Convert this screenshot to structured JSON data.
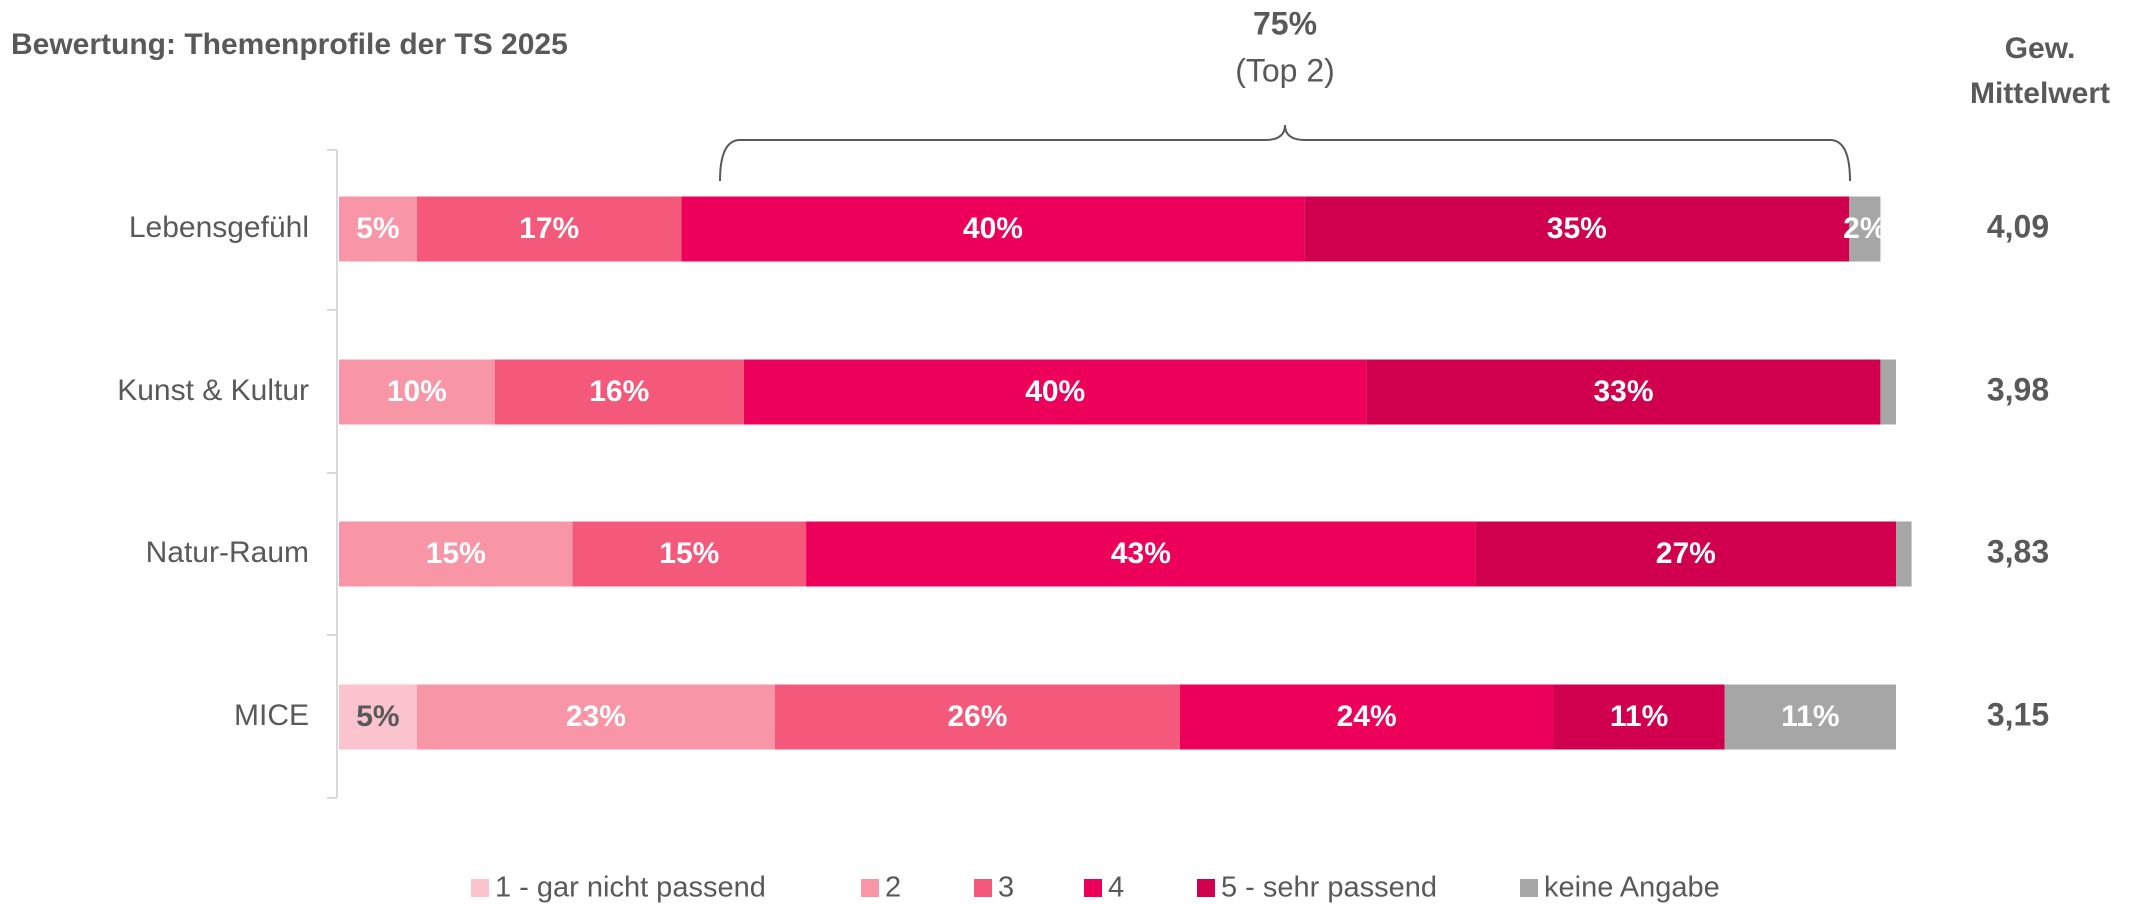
{
  "chart_data": {
    "type": "stacked_bar_horizontal",
    "title": "Bewertung: Themenprofile der TS 2025",
    "categories": [
      "Lebensgefühl",
      "Kunst & Kultur",
      "Natur-Raum",
      "MICE"
    ],
    "xlim": [
      0,
      100
    ],
    "series": [
      {
        "name": "1 - gar nicht passend",
        "color": "#fbc3cd",
        "label_color": "#595959",
        "values": [
          0,
          0,
          0,
          5
        ],
        "value_labels": [
          null,
          null,
          null,
          "5%"
        ]
      },
      {
        "name": "2",
        "color": "#f895a6",
        "label_color": "#ffffff",
        "values": [
          5,
          10,
          15,
          23
        ],
        "value_labels": [
          "5%",
          "10%",
          "15%",
          "23%"
        ]
      },
      {
        "name": "3",
        "color": "#f4587a",
        "label_color": "#ffffff",
        "values": [
          17,
          16,
          15,
          26
        ],
        "value_labels": [
          "17%",
          "16%",
          "15%",
          "26%"
        ]
      },
      {
        "name": "4",
        "color": "#ec005a",
        "label_color": "#ffffff",
        "values": [
          40,
          40,
          43,
          24
        ],
        "value_labels": [
          "40%",
          "40%",
          "43%",
          "24%"
        ]
      },
      {
        "name": "5 - sehr passend",
        "color": "#d0004f",
        "label_color": "#ffffff",
        "values": [
          35,
          33,
          27,
          11
        ],
        "value_labels": [
          "35%",
          "33%",
          "27%",
          "11%"
        ]
      },
      {
        "name": "keine Angabe",
        "color": "#a6a6a6",
        "label_color": "#ffffff",
        "values": [
          2,
          1,
          1,
          11
        ],
        "value_labels": [
          "2%",
          null,
          null,
          "11%"
        ]
      }
    ],
    "annotation": {
      "value_label": "75%",
      "text": "(Top 2)"
    },
    "mean_header": [
      "Gew.",
      "Mittelwert"
    ],
    "means": [
      "4,09",
      "3,98",
      "3,83",
      "3,15"
    ]
  }
}
